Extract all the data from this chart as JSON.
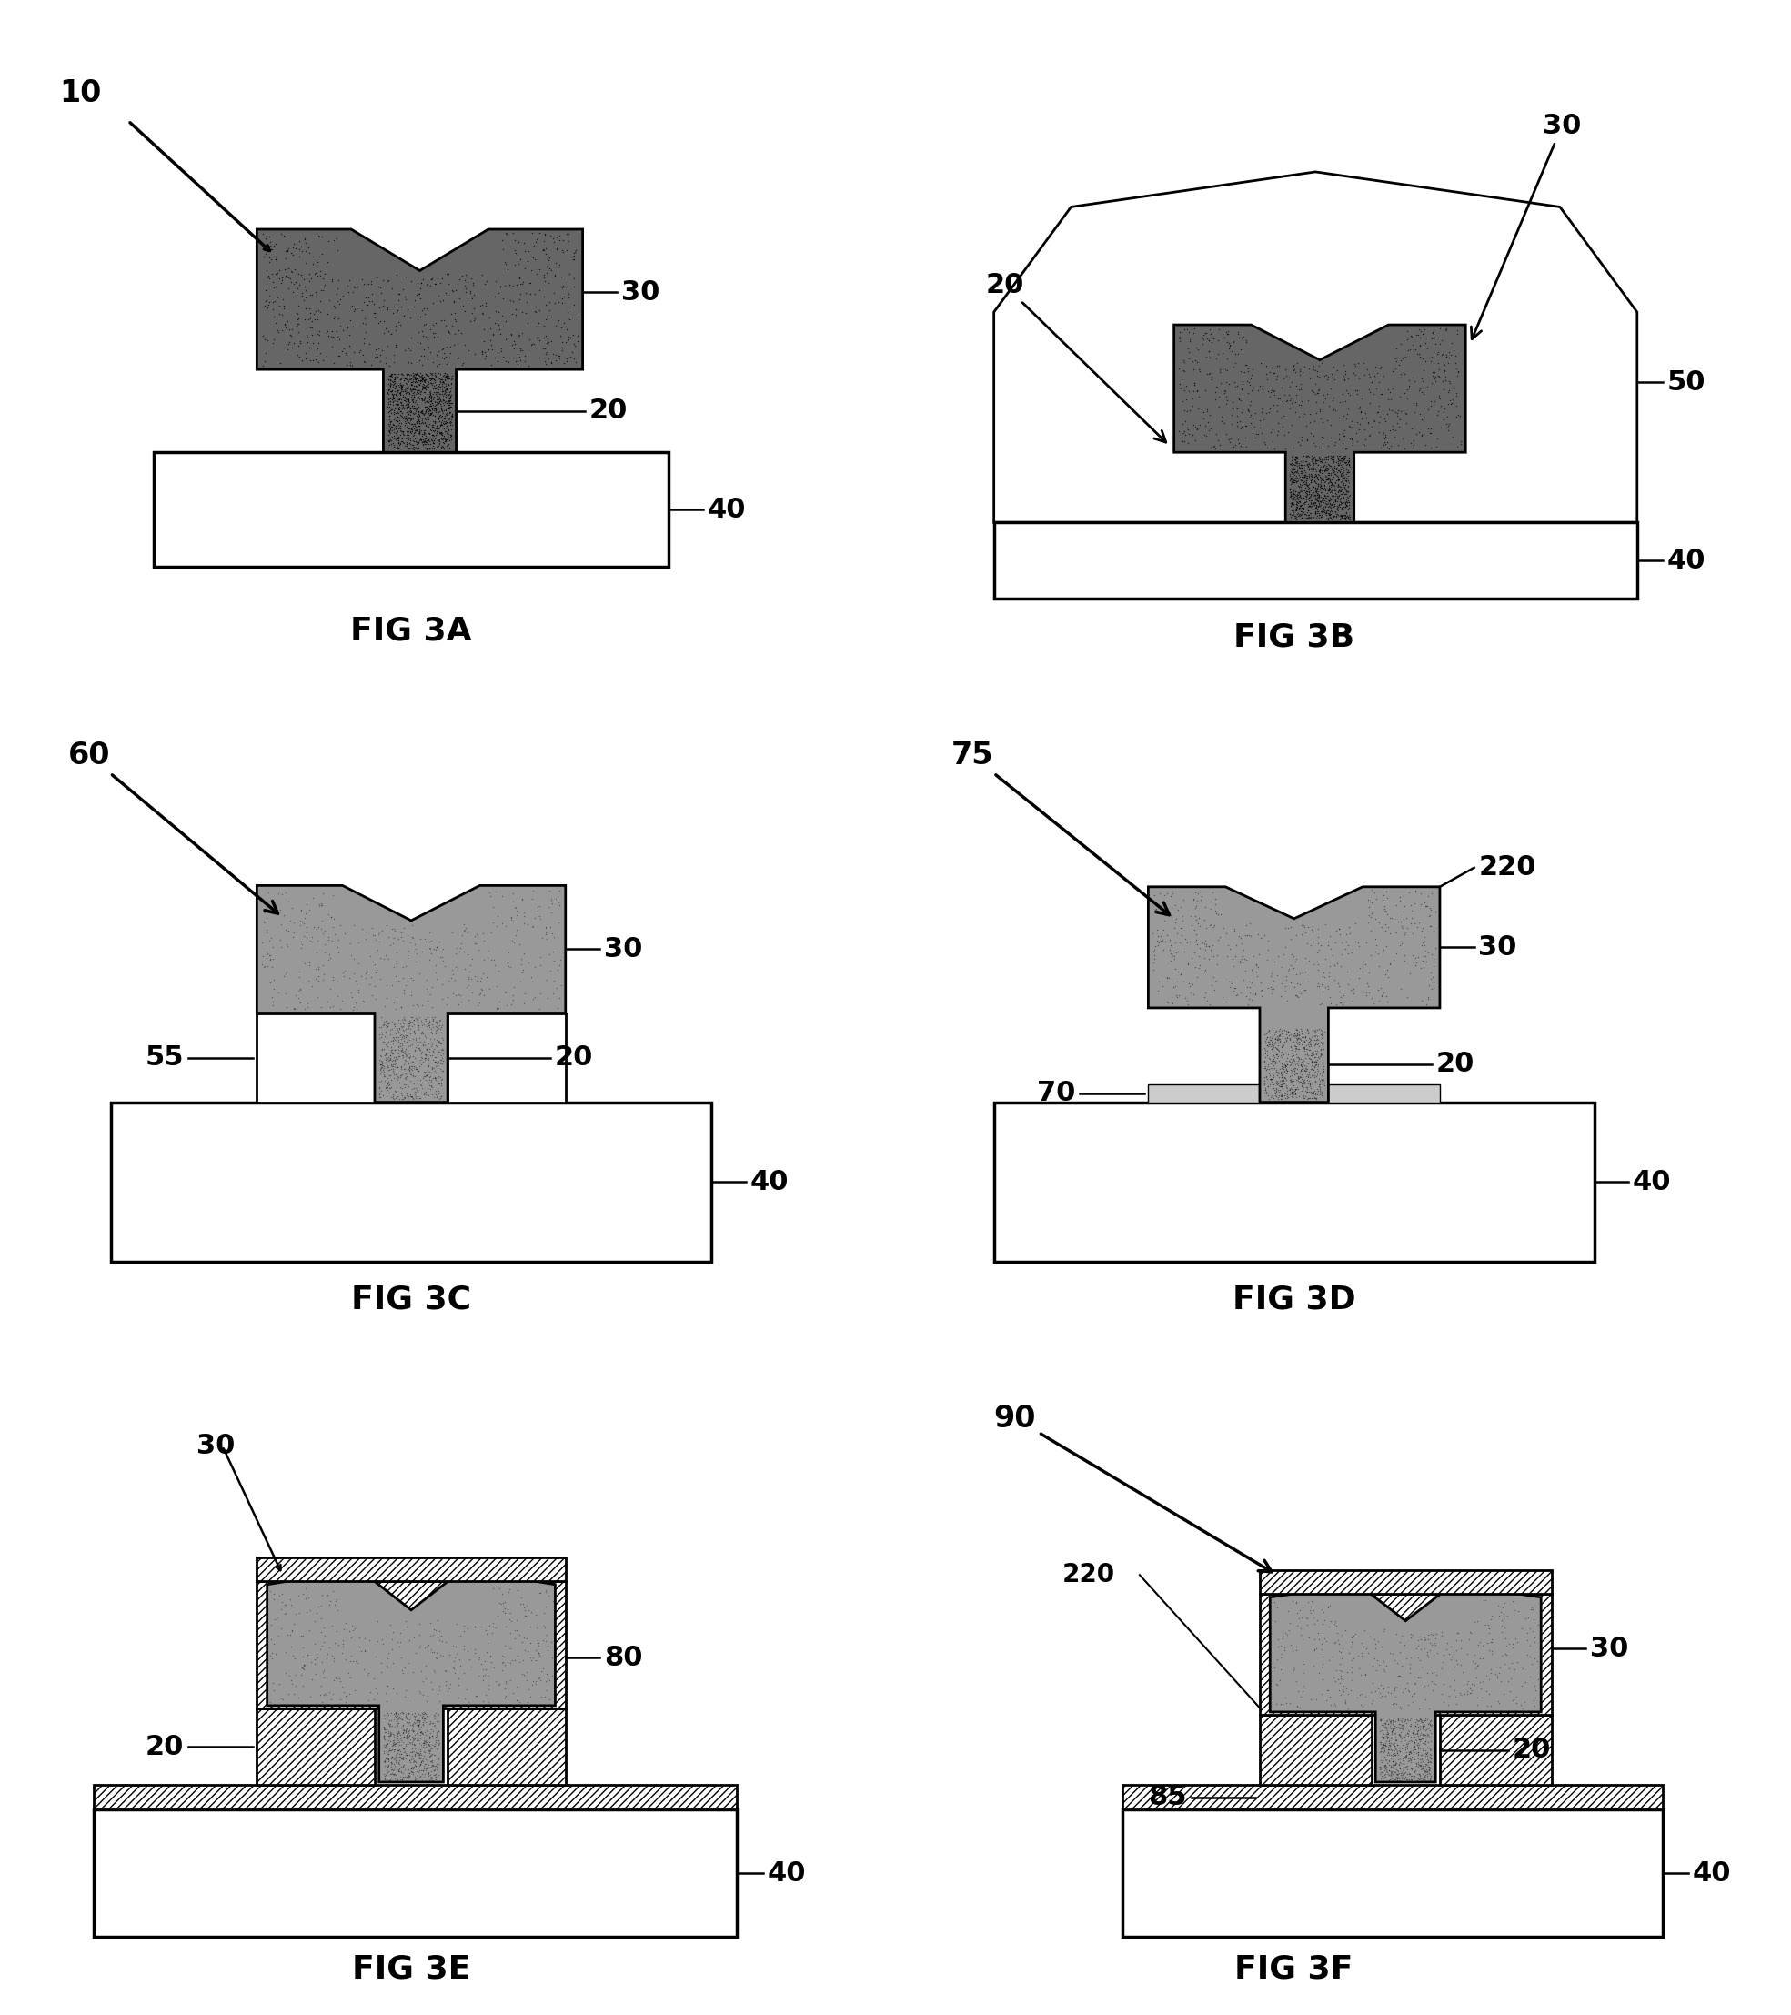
{
  "bg_color": "#ffffff",
  "fig_labels": [
    "FIG 3A",
    "FIG 3B",
    "FIG 3C",
    "FIG 3D",
    "FIG 3E",
    "FIG 3F"
  ],
  "gate_dark": "#555555",
  "gate_medium": "#888888",
  "gate_light": "#aaaaaa",
  "sub_color": "#ffffff",
  "line_color": "#000000",
  "label_fontsize": 22,
  "fig_label_fontsize": 26,
  "lw_main": 2.0,
  "lw_sub": 1.5
}
